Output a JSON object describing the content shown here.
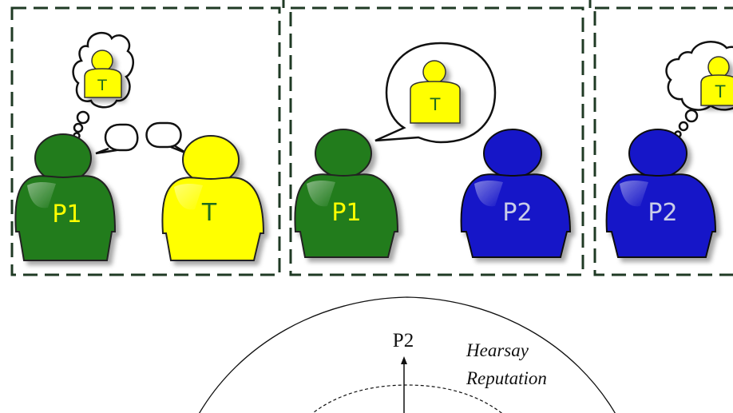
{
  "panels": [
    {
      "persons": [
        {
          "label": "P1",
          "color": "#217b1c"
        },
        {
          "label": "T",
          "color": "#ffff00"
        }
      ],
      "thought": {
        "label": "T",
        "color": "#ffff00"
      }
    },
    {
      "persons": [
        {
          "label": "P1",
          "color": "#217b1c"
        },
        {
          "label": "P2",
          "color": "#1414c8"
        }
      ],
      "speech": {
        "label": "T",
        "color": "#ffff00"
      }
    },
    {
      "persons": [
        {
          "label": "P2",
          "color": "#1414c8"
        }
      ],
      "thought": {
        "label": "T",
        "color": "#ffff00"
      }
    }
  ],
  "lower": {
    "node_label": "P2",
    "ring_label_line1": "Hearsay",
    "ring_label_line2": "Reputation"
  },
  "colors": {
    "panel_border": "#1f3a24",
    "label_on_dark": "#ffff00",
    "label_on_blue": "#c9cde8",
    "label_on_yellow": "#1e6b1e"
  }
}
